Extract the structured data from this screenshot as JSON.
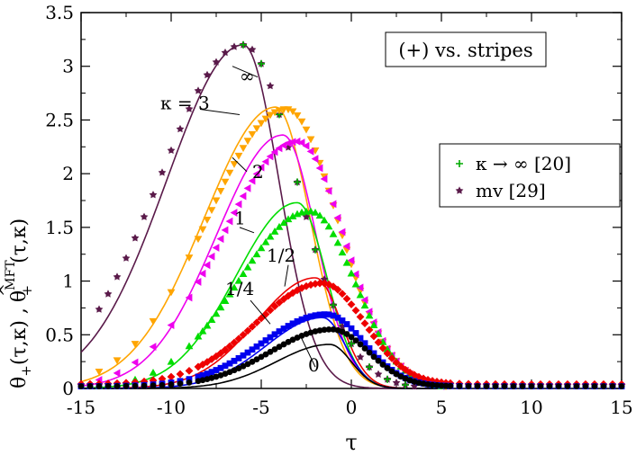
{
  "chart_data": {
    "type": "line",
    "xlabel": "τ",
    "ylabel_parts": {
      "theta1": "θ",
      "sub1": "+",
      "args1": "(τ,κ) ,",
      "hat": "^",
      "theta2": "θ",
      "sup2": "MFT",
      "sub2": "+",
      "args2": "(τ,κ)"
    },
    "xlim": [
      -15,
      15
    ],
    "ylim": [
      0,
      3.5
    ],
    "xticks": [
      "-15",
      "-10",
      "-5",
      "0",
      "5",
      "10",
      "15"
    ],
    "xtick_values": [
      -15,
      -10,
      -5,
      0,
      5,
      10,
      15
    ],
    "yticks": [
      "0",
      "0.5",
      "1",
      "1.5",
      "2",
      "2.5",
      "3",
      "3.5"
    ],
    "ytick_values": [
      0,
      0.5,
      1,
      1.5,
      2,
      2.5,
      3,
      3.5
    ],
    "legend_box": "(+) vs. stripes",
    "legend": [
      {
        "label": "κ → ∞ [20]",
        "color": "#00aa00",
        "marker": "plus"
      },
      {
        "label": "mv [29]",
        "color": "#5a1a4a",
        "marker": "star"
      }
    ],
    "annotations": [
      {
        "text": "∞",
        "x": -6.2,
        "y": 2.85
      },
      {
        "text": "κ = 3",
        "x": -10.6,
        "y": 2.6
      },
      {
        "text": "2",
        "x": -5.5,
        "y": 1.96
      },
      {
        "text": "1",
        "x": -6.5,
        "y": 1.53
      },
      {
        "text": "1/2",
        "x": -4.7,
        "y": 1.18
      },
      {
        "text": "1/4",
        "x": -7.0,
        "y": 0.87
      },
      {
        "text": "0",
        "x": -2.4,
        "y": 0.16
      }
    ],
    "series": [
      {
        "name": "κ=∞",
        "color": "#5a1a4a",
        "kind": "line",
        "x0": -15,
        "x1": 5.5,
        "peak": 3.2,
        "tp": -6.0,
        "sl": 6.0,
        "sr": 2.8,
        "y0": 0
      },
      {
        "name": "κ=3",
        "color": "#ffa500",
        "kind": "line",
        "x0": -15,
        "x1": 5.5,
        "peak": 2.62,
        "tp": -4.2,
        "sl": 5.6,
        "sr": 2.7,
        "y0": 0
      },
      {
        "name": "κ=2",
        "color": "#ee00ee",
        "kind": "line",
        "x0": -15,
        "x1": 5.5,
        "peak": 2.36,
        "tp": -3.8,
        "sl": 5.2,
        "sr": 2.6,
        "y0": 0
      },
      {
        "name": "κ=1",
        "color": "#00dd00",
        "kind": "line",
        "x0": -15,
        "x1": 5.5,
        "peak": 1.73,
        "tp": -3.0,
        "sl": 4.8,
        "sr": 2.3,
        "y0": 0
      },
      {
        "name": "κ=1/2",
        "color": "#ee0000",
        "kind": "line",
        "x0": -15,
        "x1": 5.5,
        "peak": 1.03,
        "tp": -2.0,
        "sl": 4.6,
        "sr": 2.0,
        "y0": 0
      },
      {
        "name": "κ=1/4",
        "color": "#0000ee",
        "kind": "line",
        "x0": -15,
        "x1": 5.5,
        "peak": 0.66,
        "tp": -1.6,
        "sl": 4.4,
        "sr": 1.8,
        "y0": 0
      },
      {
        "name": "κ=0",
        "color": "#000000",
        "kind": "line",
        "x0": -15,
        "x1": 5.5,
        "peak": 0.41,
        "tp": -1.2,
        "sl": 4.2,
        "sr": 1.7,
        "y0": 0
      },
      {
        "name": "mv",
        "color": "#5a1a4a",
        "kind": "star",
        "x0": -14,
        "x1": 14.5,
        "step": 0.5,
        "peak": 3.2,
        "tp": -6.0,
        "sl": 6.6,
        "sr": 4.2,
        "y0": 0
      },
      {
        "name": "κ→∞",
        "color": "#00aa00",
        "kind": "plus",
        "x0": -6,
        "x1": 14,
        "step": 1.0,
        "peak": 3.2,
        "tp": -6.0,
        "sl": 6.6,
        "sr": 4.2,
        "y0": 0
      },
      {
        "name": "sim κ=3",
        "color": "#ffa500",
        "kind": "tri-down",
        "x0": -14,
        "x1": 5.5,
        "step": 0.25,
        "dense_from": -8.5,
        "sparse_step": 1.0,
        "peak": 2.6,
        "tp": -3.6,
        "sl": 6.2,
        "sr": 4.0,
        "y0": 0
      },
      {
        "name": "sim κ=2",
        "color": "#ee00ee",
        "kind": "tri-left",
        "x0": -14,
        "x1": 5.5,
        "step": 0.25,
        "dense_from": -8.5,
        "sparse_step": 1.0,
        "peak": 2.3,
        "tp": -3.0,
        "sl": 6.0,
        "sr": 3.7,
        "y0": 0
      },
      {
        "name": "sim κ=1",
        "color": "#00dd00",
        "kind": "tri-up",
        "x0": -15,
        "x1": 5.5,
        "step": 0.25,
        "dense_from": -8.5,
        "sparse_step": 1.0,
        "peak": 1.65,
        "tp": -2.3,
        "sl": 5.6,
        "sr": 3.5,
        "y0": 0
      },
      {
        "name": "sim κ=1/2",
        "color": "#ee0000",
        "kind": "diamond",
        "x0": -15,
        "x1": 15,
        "step": 0.25,
        "dense_from": -8.5,
        "sparse_step": 0.5,
        "peak": 0.98,
        "tp": -1.6,
        "sl": 5.2,
        "sr": 3.3,
        "y0": 0.04
      },
      {
        "name": "sim κ=1/4",
        "color": "#0000ee",
        "kind": "square",
        "x0": -15,
        "x1": 15,
        "step": 0.25,
        "dense_from": -8.5,
        "sparse_step": 0.5,
        "peak": 0.69,
        "tp": -1.4,
        "sl": 5.0,
        "sr": 3.0,
        "y0": 0.02
      },
      {
        "name": "sim κ=0",
        "color": "#000000",
        "kind": "circle",
        "x0": -15,
        "x1": 15,
        "step": 0.25,
        "dense_from": -8.5,
        "sparse_step": 0.5,
        "peak": 0.55,
        "tp": -1.1,
        "sl": 4.8,
        "sr": 2.9,
        "y0": 0.02
      }
    ]
  }
}
